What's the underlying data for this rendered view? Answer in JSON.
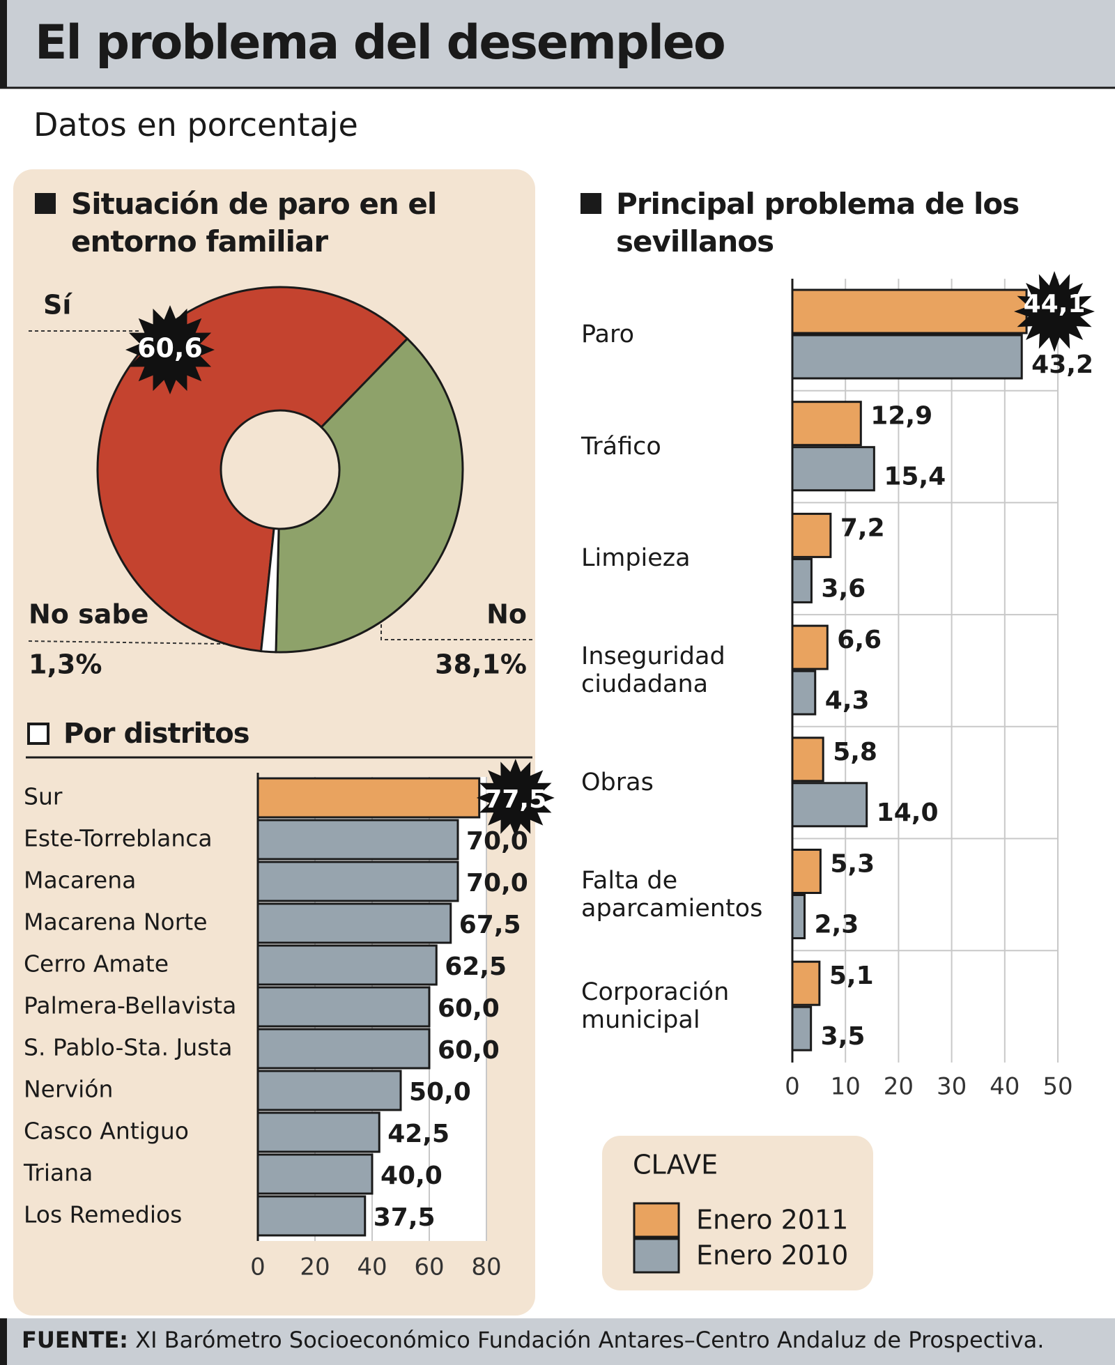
{
  "title": "El problema del desempleo",
  "subtitle": "Datos en porcentaje",
  "source_label": "FUENTE:",
  "source": "XI Barómetro Socioeconómico Fundación Antares–Centro Andaluz de Prospectiva.",
  "chart_data": [
    {
      "type": "pie",
      "title": "Situación de paro en el entorno familiar",
      "categories": [
        "Sí",
        "No",
        "No sabe"
      ],
      "values": [
        60.6,
        38.1,
        1.3
      ],
      "value_labels": [
        "60,6",
        "38,1%",
        "1,3%"
      ],
      "colors": [
        "#c4432f",
        "#8ea26a",
        "#ffffff"
      ]
    },
    {
      "type": "bar",
      "title": "Por distritos",
      "categories": [
        "Sur",
        "Este-Torreblanca",
        "Macarena",
        "Macarena Norte",
        "Cerro Amate",
        "Palmera-Bellavista",
        "S. Pablo-Sta. Justa",
        "Nervión",
        "Casco Antiguo",
        "Triana",
        "Los Remedios"
      ],
      "values": [
        77.5,
        70.0,
        70.0,
        67.5,
        62.5,
        60.0,
        60.0,
        50.0,
        42.5,
        40.0,
        37.5
      ],
      "value_labels": [
        "77,5",
        "70,0",
        "70,0",
        "67,5",
        "62,5",
        "60,0",
        "60,0",
        "50,0",
        "42,5",
        "40,0",
        "37,5"
      ],
      "colors": [
        "#e9a35f",
        "#97a4ae",
        "#97a4ae",
        "#97a4ae",
        "#97a4ae",
        "#97a4ae",
        "#97a4ae",
        "#97a4ae",
        "#97a4ae",
        "#97a4ae",
        "#97a4ae"
      ],
      "xlim": [
        0,
        80
      ],
      "xticks": [
        0,
        20,
        40,
        60,
        80
      ],
      "grid": true
    },
    {
      "type": "grouped_bar",
      "title": "Principal problema de los sevillanos",
      "categories": [
        "Paro",
        "Tráfico",
        "Limpieza",
        "Inseguridad ciudadana",
        "Obras",
        "Falta de aparcamientos",
        "Corporación municipal"
      ],
      "series": [
        {
          "name": "Enero 2011",
          "color": "#e9a35f",
          "values": [
            44.1,
            12.9,
            7.2,
            6.6,
            5.8,
            5.3,
            5.1
          ],
          "value_labels": [
            "44,1",
            "12,9",
            "7,2",
            "6,6",
            "5,8",
            "5,3",
            "5,1"
          ]
        },
        {
          "name": "Enero 2010",
          "color": "#97a4ae",
          "values": [
            43.2,
            15.4,
            3.6,
            4.3,
            14.0,
            2.3,
            3.5
          ],
          "value_labels": [
            "43,2",
            "15,4",
            "3,6",
            "4,3",
            "14,0",
            "2,3",
            "3,5"
          ]
        }
      ],
      "legend_title": "CLAVE",
      "xlim": [
        0,
        50
      ],
      "xticks": [
        0,
        10,
        20,
        30,
        40,
        50
      ],
      "grid": true
    }
  ]
}
